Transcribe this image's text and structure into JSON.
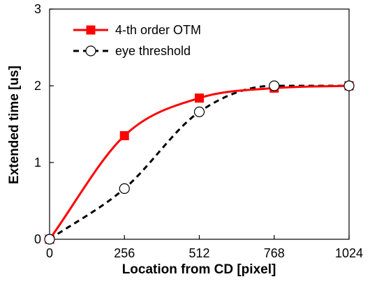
{
  "chart_data": {
    "type": "line",
    "title": "",
    "xlabel": "Location from CD [pixel]",
    "ylabel": "Extended time [us]",
    "xlim": [
      0,
      1024
    ],
    "ylim": [
      0,
      3
    ],
    "x_ticks": [
      0,
      256,
      512,
      768,
      1024
    ],
    "y_ticks": [
      0,
      1,
      2,
      3
    ],
    "grid": false,
    "legend_position": "top-left",
    "series": [
      {
        "name": "4-th order OTM",
        "color": "#ff0000",
        "line_style": "solid",
        "marker": "filled-square",
        "x": [
          0,
          256,
          512,
          768,
          1024
        ],
        "y": [
          0,
          1.35,
          1.84,
          1.97,
          2.0
        ]
      },
      {
        "name": "eye threshold",
        "color": "#000000",
        "line_style": "dashed",
        "marker": "open-circle",
        "x": [
          0,
          256,
          512,
          768,
          1024
        ],
        "y": [
          0,
          0.66,
          1.66,
          2.0,
          2.0
        ]
      }
    ]
  }
}
